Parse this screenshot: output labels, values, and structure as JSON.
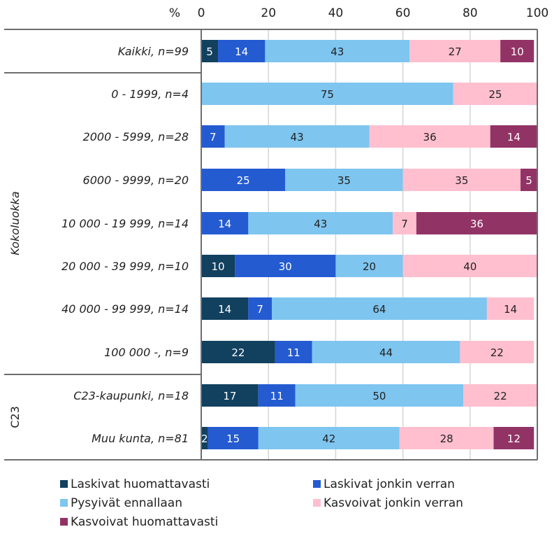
{
  "chart_data": {
    "type": "bar",
    "orientation": "horizontal",
    "stacked": true,
    "axis_unit_label": "%",
    "xlim": [
      0,
      100
    ],
    "xticks": [
      0,
      20,
      40,
      60,
      80,
      100
    ],
    "grid": true,
    "legend_position": "bottom",
    "groups": [
      {
        "label": "",
        "categories": [
          "Kaikki, n=99"
        ]
      },
      {
        "label": "Kokoluokka",
        "categories": [
          "0 - 1999, n=4",
          "2000 - 5999, n=28",
          "6000 - 9999, n=20",
          "10 000 - 19 999, n=14",
          "20 000 - 39 999, n=10",
          "40 000 - 99 999, n=14",
          "100 000 -, n=9"
        ]
      },
      {
        "label": "C23",
        "categories": [
          "C23-kaupunki, n=18",
          "Muu kunta, n=81"
        ]
      }
    ],
    "categories": [
      "Kaikki, n=99",
      "0 - 1999, n=4",
      "2000 - 5999, n=28",
      "6000 - 9999, n=20",
      "10 000 - 19 999, n=14",
      "20 000 - 39 999, n=10",
      "40 000 - 99 999, n=14",
      "100 000 -, n=9",
      "C23-kaupunki, n=18",
      "Muu kunta, n=81"
    ],
    "series": [
      {
        "name": "Laskivat huomattavasti",
        "color": "#12405f",
        "label_color": "#ffffff",
        "values": [
          5,
          0,
          0,
          0,
          0,
          10,
          14,
          22,
          17,
          2
        ]
      },
      {
        "name": "Laskivat jonkin verran",
        "color": "#245bd1",
        "label_color": "#ffffff",
        "values": [
          14,
          0,
          7,
          25,
          14,
          30,
          7,
          11,
          11,
          15
        ]
      },
      {
        "name": "Pysyivät ennallaan",
        "color": "#7ec5ef",
        "label_color": "#222222",
        "values": [
          43,
          75,
          43,
          35,
          43,
          20,
          64,
          44,
          50,
          42
        ]
      },
      {
        "name": "Kasvoivat jonkin verran",
        "color": "#ffbfcf",
        "label_color": "#222222",
        "values": [
          27,
          25,
          36,
          35,
          7,
          40,
          14,
          22,
          22,
          28
        ]
      },
      {
        "name": "Kasvoivat huomattavasti",
        "color": "#923366",
        "label_color": "#ffffff",
        "values": [
          10,
          0,
          14,
          5,
          36,
          0,
          0,
          0,
          0,
          12
        ]
      }
    ]
  }
}
